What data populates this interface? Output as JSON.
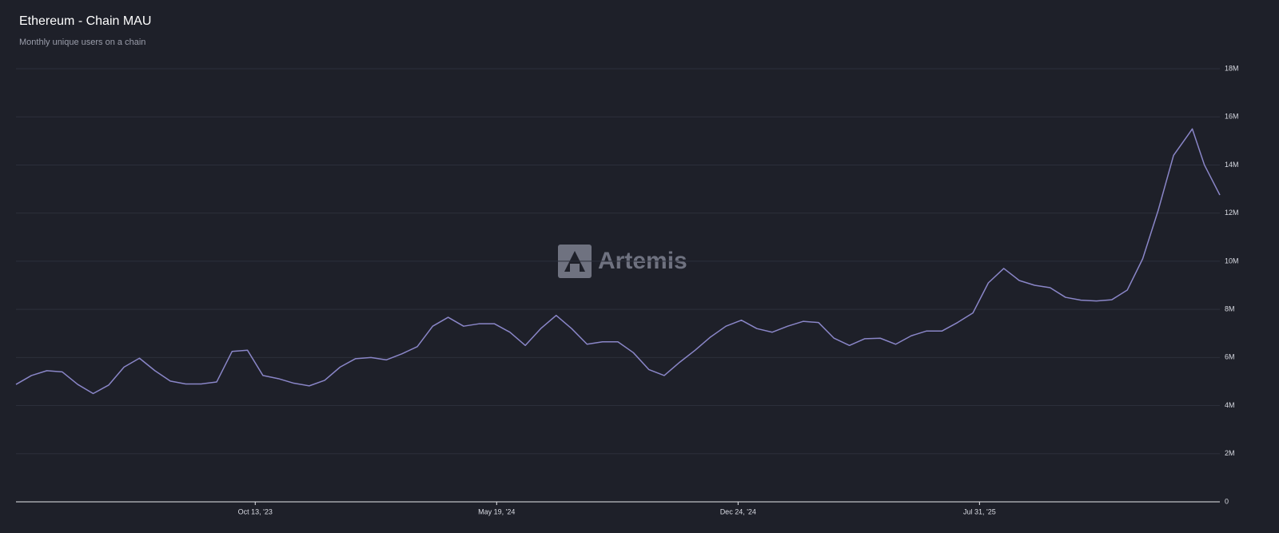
{
  "chart_data": {
    "type": "line",
    "title": "Ethereum - Chain MAU",
    "subtitle": "Monthly unique users on a chain",
    "watermark": "Artemis",
    "x": [
      "2023-03-10",
      "2023-03-24",
      "2023-04-07",
      "2023-04-21",
      "2023-05-05",
      "2023-05-19",
      "2023-06-02",
      "2023-06-16",
      "2023-06-30",
      "2023-07-14",
      "2023-07-28",
      "2023-08-11",
      "2023-08-25",
      "2023-09-08",
      "2023-09-22",
      "2023-10-06",
      "2023-10-20",
      "2023-11-03",
      "2023-11-17",
      "2023-12-01",
      "2023-12-15",
      "2023-12-29",
      "2024-01-12",
      "2024-01-26",
      "2024-02-09",
      "2024-02-23",
      "2024-03-08",
      "2024-03-22",
      "2024-04-05",
      "2024-04-19",
      "2024-05-03",
      "2024-05-17",
      "2024-05-31",
      "2024-06-14",
      "2024-06-28",
      "2024-07-12",
      "2024-07-26",
      "2024-08-09",
      "2024-08-23",
      "2024-09-06",
      "2024-09-20",
      "2024-10-04",
      "2024-10-18",
      "2024-11-01",
      "2024-11-15",
      "2024-11-29",
      "2024-12-13",
      "2024-12-27",
      "2025-01-10",
      "2025-01-24",
      "2025-02-07",
      "2025-02-21",
      "2025-03-07",
      "2025-03-21",
      "2025-04-04",
      "2025-04-18",
      "2025-05-02",
      "2025-05-16",
      "2025-05-30",
      "2025-06-13",
      "2025-06-27",
      "2025-07-11",
      "2025-07-25",
      "2025-08-08",
      "2025-08-22",
      "2025-09-05",
      "2025-09-19",
      "2025-10-03",
      "2025-10-17",
      "2025-10-31",
      "2025-11-14",
      "2025-11-28",
      "2025-12-12",
      "2025-12-26",
      "2026-01-09",
      "2026-01-23",
      "2026-02-06",
      "2026-02-09",
      "2026-02-20",
      "2026-03-06"
    ],
    "series": [
      {
        "name": "Chain MAU",
        "color": "#8a86c8",
        "values": [
          4880000,
          5250000,
          5450000,
          5400000,
          4880000,
          4500000,
          4850000,
          5600000,
          5970000,
          5450000,
          5020000,
          4900000,
          4900000,
          4980000,
          6250000,
          6300000,
          5250000,
          5120000,
          4930000,
          4820000,
          5050000,
          5600000,
          5950000,
          6000000,
          5900000,
          6150000,
          6450000,
          7300000,
          7670000,
          7300000,
          7400000,
          7400000,
          7050000,
          6500000,
          7200000,
          7750000,
          7200000,
          6550000,
          6650000,
          6650000,
          6200000,
          5500000,
          5250000,
          5800000,
          6300000,
          6850000,
          7300000,
          7550000,
          7200000,
          7050000,
          7300000,
          7500000,
          7450000,
          6800000,
          6500000,
          6780000,
          6800000,
          6550000,
          6900000,
          7100000,
          7100000,
          7450000,
          7850000,
          9100000,
          9700000,
          9200000,
          9000000,
          8900000,
          8500000,
          8380000,
          8350000,
          8400000,
          8800000,
          10100000,
          12100000,
          14400000,
          15300000,
          15500000,
          14000000,
          12750000
        ]
      }
    ],
    "xlim": [
      "2023-03-10",
      "2026-03-06"
    ],
    "xticks": [
      {
        "value": "2023-10-13",
        "label": "Oct 13, '23"
      },
      {
        "value": "2024-05-19",
        "label": "May 19, '24"
      },
      {
        "value": "2024-12-24",
        "label": "Dec 24, '24"
      },
      {
        "value": "2025-07-31",
        "label": "Jul 31, '25"
      }
    ],
    "ylim": [
      0,
      18000000
    ],
    "yticks": [
      0,
      {
        "value": 2000000,
        "label": "2M"
      },
      {
        "value": 4000000,
        "label": "4M"
      },
      {
        "value": 6000000,
        "label": "6M"
      },
      {
        "value": 8000000,
        "label": "8M"
      },
      {
        "value": 10000000,
        "label": "10M"
      },
      {
        "value": 12000000,
        "label": "12M"
      },
      {
        "value": 14000000,
        "label": "14M"
      },
      {
        "value": 16000000,
        "label": "16M"
      },
      {
        "value": 18000000,
        "label": "18M"
      }
    ],
    "grid": true
  }
}
